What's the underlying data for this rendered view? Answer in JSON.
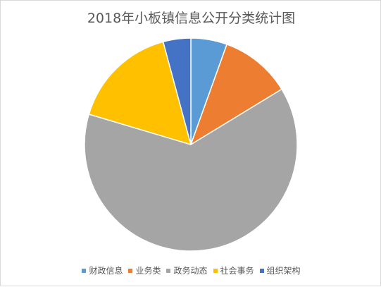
{
  "chart_data": {
    "type": "pie",
    "title": "2018年小板镇信息公开分类统计图",
    "categories": [
      "财政信息",
      "业务类",
      "政务动态",
      "社会事务",
      "组织架构"
    ],
    "values": [
      5.5,
      10.8,
      63.3,
      16.2,
      4.2
    ],
    "unit": "percent of total (estimated from slice angles)",
    "colors": [
      "#5b9bd5",
      "#ed7d31",
      "#a5a5a5",
      "#ffc000",
      "#4472c4"
    ],
    "start": "12 o'clock",
    "direction": "clockwise",
    "legend_position": "bottom"
  }
}
